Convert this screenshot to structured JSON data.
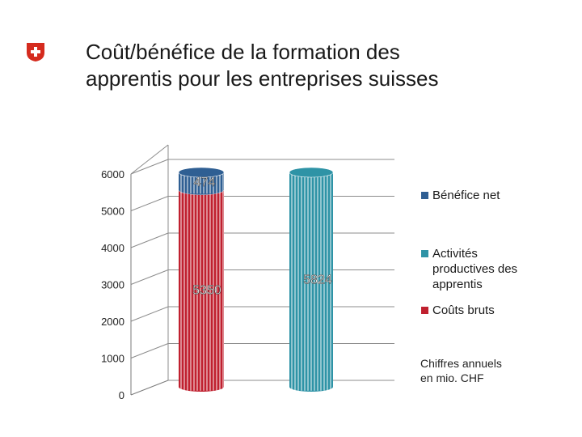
{
  "slide": {
    "title_line1": "Coût/bénéfice de la formation des",
    "title_line2": "apprentis pour les entreprises suisses",
    "note_line1": "Chiffres annuels",
    "note_line2": "en mio. CHF"
  },
  "colors": {
    "logo_red": "#d52b1e",
    "benefit": "#2f5f93",
    "activities": "#2e93a6",
    "costs": "#c0202f"
  },
  "chart_data": {
    "type": "bar",
    "stacked": true,
    "three_d": true,
    "categories": [
      "",
      ""
    ],
    "series": [
      {
        "name": "Coûts bruts",
        "values": [
          5350,
          0
        ],
        "color": "#c0202f"
      },
      {
        "name": "Bénéfice net",
        "values": [
          474,
          0
        ],
        "color": "#2f5f93"
      },
      {
        "name": "Activités productives des apprentis",
        "values": [
          0,
          5824
        ],
        "color": "#2e93a6"
      }
    ],
    "data_labels": [
      "474",
      "5350",
      "5824"
    ],
    "y_ticks": [
      0,
      1000,
      2000,
      3000,
      4000,
      5000,
      6000
    ],
    "ylim": [
      0,
      6000
    ],
    "grid": true,
    "legend_position": "right",
    "legend_order": [
      "Bénéfice net",
      "Activités productives des apprentis",
      "Coûts bruts"
    ]
  }
}
